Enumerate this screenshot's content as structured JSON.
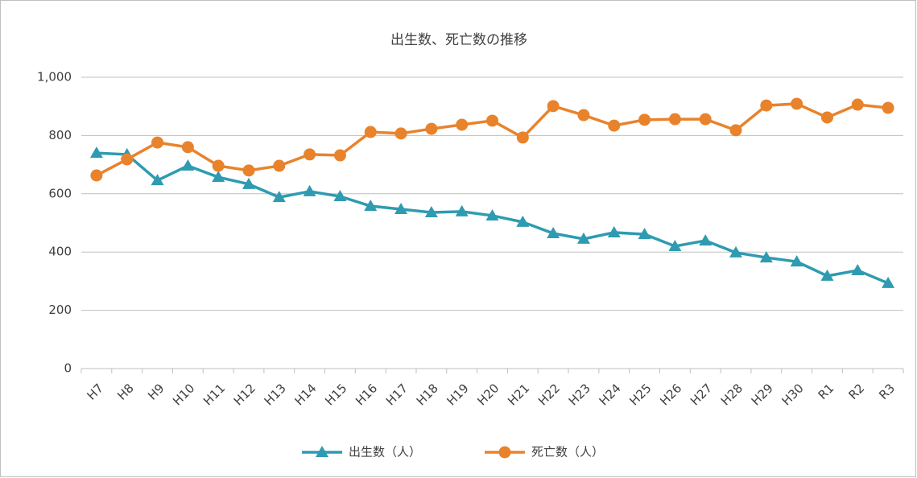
{
  "chart_data": {
    "type": "line",
    "title": "出生数、死亡数の推移",
    "categories": [
      "H7",
      "H8",
      "H9",
      "H10",
      "H11",
      "H12",
      "H13",
      "H14",
      "H15",
      "H16",
      "H17",
      "H18",
      "H19",
      "H20",
      "H21",
      "H22",
      "H23",
      "H24",
      "H25",
      "H26",
      "H27",
      "H28",
      "H29",
      "H30",
      "R1",
      "R2",
      "R3"
    ],
    "series": [
      {
        "name": "出生数（人）",
        "color": "#2e9bb1",
        "marker": "triangle",
        "values": [
          740,
          735,
          646,
          696,
          657,
          633,
          588,
          608,
          591,
          558,
          547,
          536,
          539,
          525,
          503,
          464,
          445,
          467,
          461,
          420,
          439,
          398,
          381,
          367,
          318,
          337,
          293
        ]
      },
      {
        "name": "死亡数（人）",
        "color": "#e8832c",
        "marker": "circle",
        "values": [
          663,
          718,
          776,
          760,
          696,
          680,
          696,
          735,
          732,
          812,
          807,
          823,
          837,
          851,
          793,
          901,
          870,
          834,
          854,
          856,
          856,
          818,
          903,
          909,
          862,
          906,
          895
        ]
      }
    ],
    "ylim": [
      0,
      1000
    ],
    "yticks": [
      0,
      200,
      400,
      600,
      800,
      {
        "value": 1000,
        "label": "1,000"
      }
    ],
    "grid": true,
    "legend": "bottom"
  }
}
